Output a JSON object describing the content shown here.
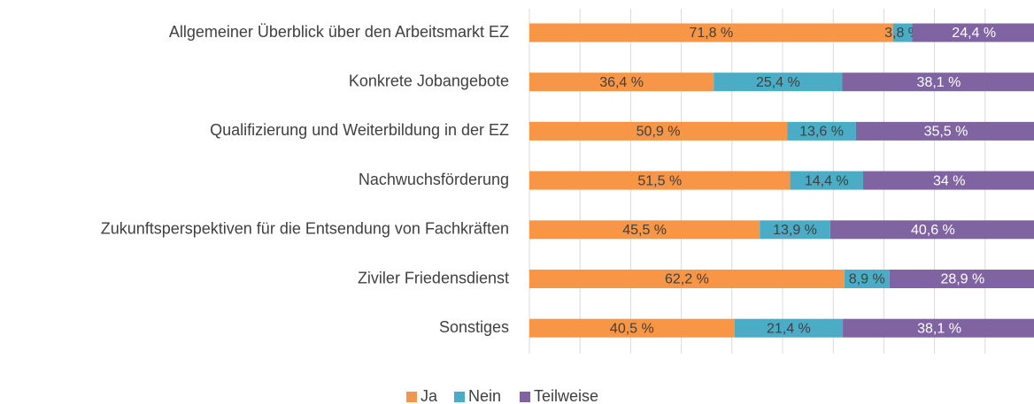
{
  "chart_data": {
    "type": "stacked_barh",
    "categories": [
      "Allgemeiner Überblick über den Arbeitsmarkt EZ",
      "Konkrete Jobangebote",
      "Qualifizierung und Weiterbildung in der EZ",
      "Nachwuchsförderung",
      "Zukunftsperspektiven für die Entsendung von Fachkräften",
      "Ziviler Friedensdienst",
      "Sonstiges"
    ],
    "series": [
      {
        "name": "Ja",
        "color": "#f79646",
        "values": [
          71.8,
          36.4,
          50.9,
          51.5,
          45.5,
          62.2,
          40.5
        ],
        "value_labels": [
          "71,8 %",
          "36,4 %",
          "50,9 %",
          "51,5 %",
          "45,5 %",
          "62,2 %",
          "40,5 %"
        ]
      },
      {
        "name": "Nein",
        "color": "#4bacc6",
        "values": [
          3.8,
          25.4,
          13.6,
          14.4,
          13.9,
          8.9,
          21.4
        ],
        "value_labels": [
          "3,8 %",
          "25,4 %",
          "13,6 %",
          "14,4 %",
          "13,9 %",
          "8,9 %",
          "21,4 %"
        ]
      },
      {
        "name": "Teilweise",
        "color": "#8064a2",
        "values": [
          24.4,
          38.1,
          35.5,
          34,
          40.6,
          28.9,
          38.1
        ],
        "value_labels": [
          "24,4 %",
          "38,1 %",
          "35,5 %",
          "34 %",
          "40,6 %",
          "28,9 %",
          "38,1 %"
        ]
      }
    ],
    "xlim": [
      0,
      100
    ],
    "xticks": [
      0,
      10,
      20,
      30,
      40,
      50,
      60,
      70,
      80,
      90,
      100
    ],
    "grid": true,
    "legend": "bottom"
  }
}
